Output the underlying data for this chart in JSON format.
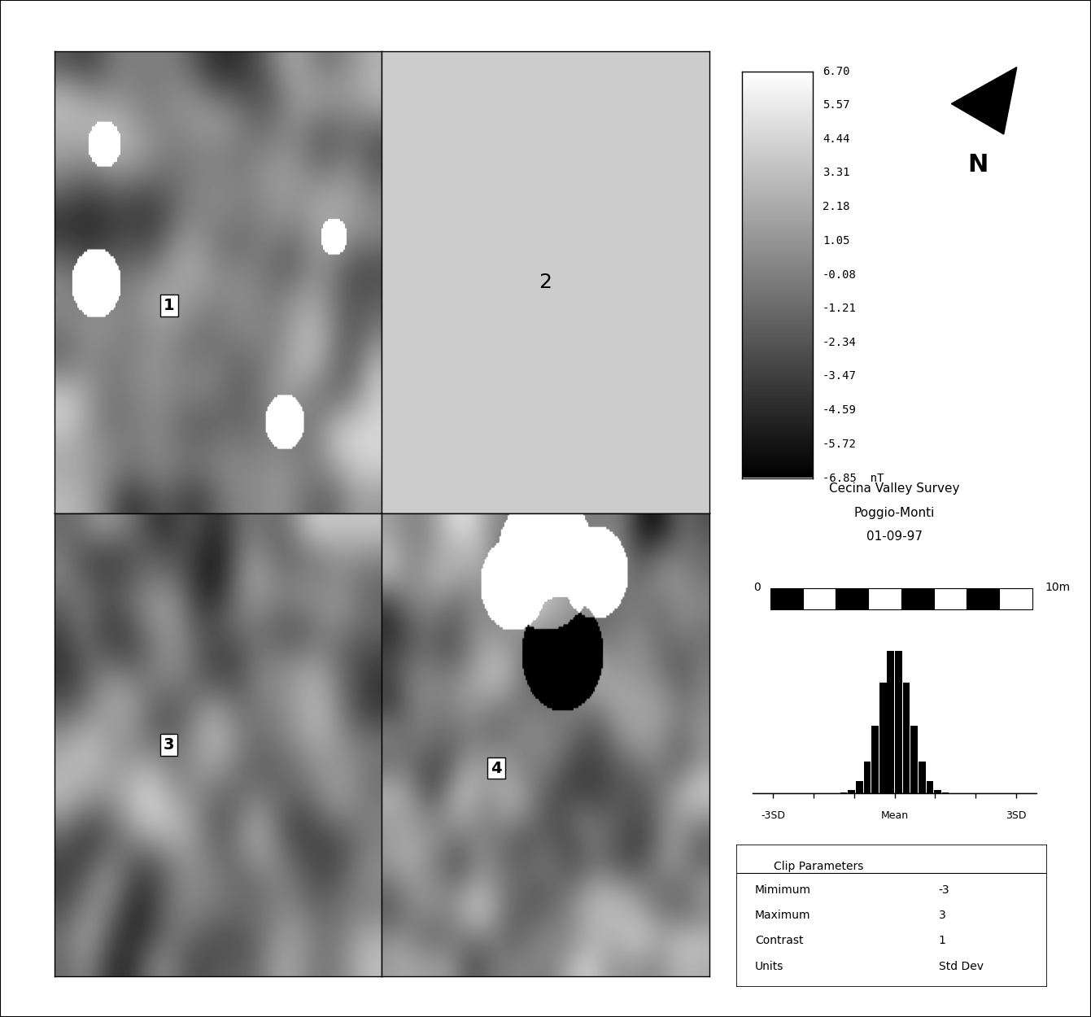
{
  "colorbar_ticks": [
    6.7,
    5.57,
    4.44,
    3.31,
    2.18,
    1.05,
    -0.08,
    -1.21,
    -2.34,
    -3.47,
    -4.59,
    -5.72,
    -6.85
  ],
  "colorbar_unit": "nT",
  "survey_title_line1": "Cecina Valley Survey",
  "survey_title_line2": "Poggio-Monti",
  "survey_title_line3": "01-09-97",
  "scale_label_left": "0",
  "scale_label_right": "10m",
  "histogram_xlabel_left": "-3SD",
  "histogram_xlabel_mid": "Mean",
  "histogram_xlabel_right": "3SD",
  "clip_title": "Clip Parameters",
  "clip_params": [
    [
      "Mimimum",
      "-3"
    ],
    [
      "Maximum",
      "3"
    ],
    [
      "Contrast",
      "1"
    ],
    [
      "Units",
      "Std Dev"
    ]
  ],
  "panel_labels": [
    "1",
    "2",
    "3",
    "4"
  ],
  "bg_color": "#e8e8e8",
  "seed": 42
}
